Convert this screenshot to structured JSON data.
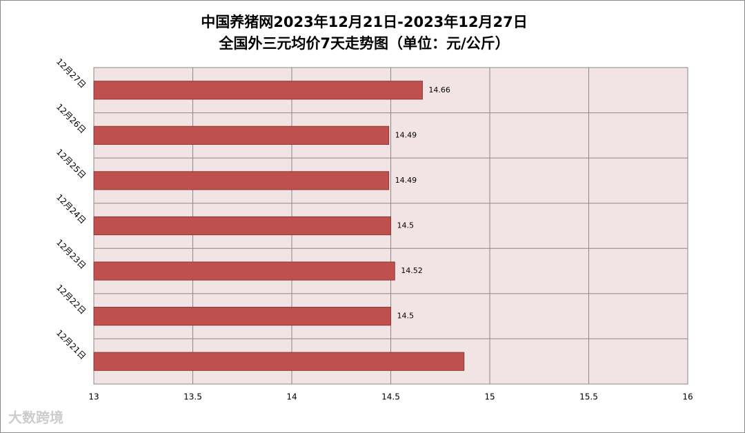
{
  "chart_data": {
    "type": "hbar",
    "title": "中国养猪网2023年12月21日-2023年12月27日",
    "subtitle": "全国外三元均价7天走势图（单位：元/公斤）",
    "categories": [
      "12月21日",
      "12月22日",
      "12月23日",
      "12月24日",
      "12月25日",
      "12月26日",
      "12月27日"
    ],
    "values": [
      14.87,
      14.5,
      14.52,
      14.5,
      14.49,
      14.49,
      14.66
    ],
    "value_labels": [
      null,
      "14.5",
      "14.52",
      "14.5",
      "14.49",
      "14.49",
      "14.66"
    ],
    "color": "#c0504d",
    "xlim": [
      13,
      16
    ],
    "xticks": [
      13,
      13.5,
      14,
      14.5,
      15,
      15.5,
      16
    ],
    "grid": true,
    "watermark": "大数跨境"
  }
}
